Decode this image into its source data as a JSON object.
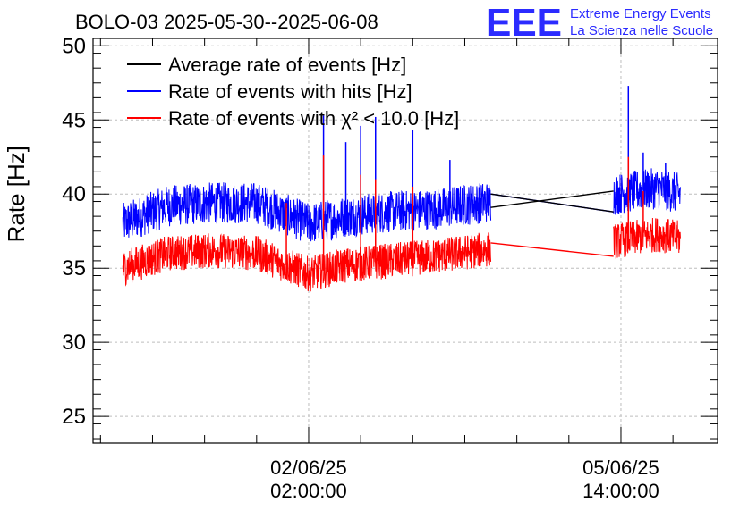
{
  "chart_data": {
    "type": "line",
    "title": "BOLO-03 2025-05-30--2025-06-08",
    "ylabel": "Rate [Hz]",
    "xlabel": "",
    "ylim": [
      23.2,
      50.5
    ],
    "yticks": [
      25,
      30,
      35,
      40,
      45,
      50
    ],
    "x_tick_labels": [
      {
        "date": "02/06/25",
        "time": "02:00:00",
        "x": "2025-06-02T02:00:00"
      },
      {
        "date": "05/06/25",
        "time": "14:00:00",
        "x": "2025-06-05T14:00:00"
      }
    ],
    "xlim": [
      "2025-05-30T16:00:00",
      "2025-06-06T16:00:00"
    ],
    "grid": true,
    "legend_position": "top-left",
    "logo": {
      "mark": "EEE",
      "line1": "Extreme Energy Events",
      "line2": "La Scienza nelle Scuole",
      "color": "#2b2bff"
    },
    "series": [
      {
        "name": "Average rate of events [Hz]",
        "color": "#000000",
        "segments": [
          {
            "x": [
              "2025-06-04T03:00:00",
              "2025-06-05T12:00:00"
            ],
            "y": [
              39.1,
              40.2
            ]
          },
          {
            "x": [
              "2025-06-04T03:00:00",
              "2025-06-05T12:00:00"
            ],
            "y": [
              40.0,
              38.8
            ]
          }
        ]
      },
      {
        "name": "Rate of events with hits [Hz]",
        "color": "#0000ff",
        "noise": 1.4,
        "segments": [
          {
            "x": [
              "2025-05-31T00:00:00",
              "2025-05-31T12:00:00",
              "2025-06-01T00:00:00",
              "2025-06-01T12:00:00",
              "2025-06-02T02:00:00",
              "2025-06-02T12:00:00",
              "2025-06-03T00:00:00",
              "2025-06-03T12:00:00",
              "2025-06-04T03:00:00"
            ],
            "y": [
              38.0,
              39.2,
              39.4,
              39.4,
              38.0,
              38.5,
              38.8,
              39.0,
              39.5
            ]
          },
          {
            "x": [
              "2025-06-05T12:00:00",
              "2025-06-06T00:00:00",
              "2025-06-06T06:00:00"
            ],
            "y": [
              40.0,
              40.4,
              40.0
            ]
          }
        ],
        "connector": {
          "x": [
            "2025-06-04T03:00:00",
            "2025-06-05T12:00:00"
          ],
          "y": [
            40.0,
            38.8
          ]
        },
        "spikes": [
          {
            "x": "2025-06-02T06:00:00",
            "y": 45.3
          },
          {
            "x": "2025-06-02T12:00:00",
            "y": 43.5
          },
          {
            "x": "2025-06-02T16:00:00",
            "y": 44.6
          },
          {
            "x": "2025-06-02T20:00:00",
            "y": 45.2
          },
          {
            "x": "2025-06-03T06:00:00",
            "y": 44.3
          },
          {
            "x": "2025-06-03T16:00:00",
            "y": 42.3
          },
          {
            "x": "2025-06-05T16:00:00",
            "y": 47.3
          },
          {
            "x": "2025-06-05T20:00:00",
            "y": 42.8
          },
          {
            "x": "2025-06-06T02:00:00",
            "y": 42.1
          }
        ]
      },
      {
        "name": "Rate of events with χ² < 10.0 [Hz]",
        "color": "#ff0000",
        "noise": 1.2,
        "segments": [
          {
            "x": [
              "2025-05-31T00:00:00",
              "2025-05-31T12:00:00",
              "2025-06-01T00:00:00",
              "2025-06-01T12:00:00",
              "2025-06-02T02:00:00",
              "2025-06-02T12:00:00",
              "2025-06-03T00:00:00",
              "2025-06-03T12:00:00",
              "2025-06-04T03:00:00"
            ],
            "y": [
              35.0,
              36.0,
              36.2,
              36.0,
              34.6,
              35.2,
              35.5,
              35.8,
              36.3
            ]
          },
          {
            "x": [
              "2025-06-05T12:00:00",
              "2025-06-06T00:00:00",
              "2025-06-06T06:00:00"
            ],
            "y": [
              36.8,
              37.3,
              37.0
            ]
          }
        ],
        "connector": {
          "x": [
            "2025-06-04T03:00:00",
            "2025-06-05T12:00:00"
          ],
          "y": [
            36.7,
            35.8
          ]
        },
        "spikes": [
          {
            "x": "2025-06-01T20:00:00",
            "y": 39.4
          },
          {
            "x": "2025-06-02T06:00:00",
            "y": 42.6
          },
          {
            "x": "2025-06-02T16:00:00",
            "y": 41.3
          },
          {
            "x": "2025-06-02T20:00:00",
            "y": 41.0
          },
          {
            "x": "2025-06-03T06:00:00",
            "y": 40.5
          },
          {
            "x": "2025-06-05T16:00:00",
            "y": 42.5
          },
          {
            "x": "2025-06-05T20:00:00",
            "y": 40.2
          }
        ]
      }
    ]
  }
}
